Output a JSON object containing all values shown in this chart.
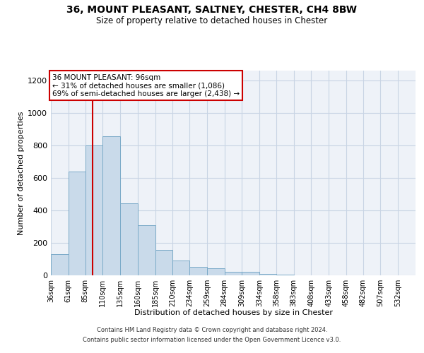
{
  "title_line1": "36, MOUNT PLEASANT, SALTNEY, CHESTER, CH4 8BW",
  "title_line2": "Size of property relative to detached houses in Chester",
  "xlabel": "Distribution of detached houses by size in Chester",
  "ylabel": "Number of detached properties",
  "bar_color": "#c9daea",
  "bar_edge_color": "#7aaac8",
  "grid_color": "#c8d4e4",
  "background_color": "#eef2f8",
  "bin_labels": [
    "36sqm",
    "61sqm",
    "85sqm",
    "110sqm",
    "135sqm",
    "160sqm",
    "185sqm",
    "210sqm",
    "234sqm",
    "259sqm",
    "284sqm",
    "309sqm",
    "334sqm",
    "358sqm",
    "383sqm",
    "408sqm",
    "433sqm",
    "458sqm",
    "482sqm",
    "507sqm",
    "532sqm"
  ],
  "bar_heights": [
    130,
    640,
    800,
    855,
    445,
    310,
    155,
    90,
    52,
    42,
    20,
    20,
    8,
    3,
    0,
    0,
    0,
    0,
    0,
    0,
    0
  ],
  "ylim": [
    0,
    1260
  ],
  "yticks": [
    0,
    200,
    400,
    600,
    800,
    1000,
    1200
  ],
  "label_values": [
    36,
    61,
    85,
    110,
    135,
    160,
    185,
    210,
    234,
    259,
    284,
    309,
    334,
    358,
    383,
    408,
    433,
    458,
    482,
    507,
    532
  ],
  "xlim_left": 36,
  "xlim_right": 557,
  "vline_x": 96,
  "vline_color": "#cc0000",
  "annotation_title": "36 MOUNT PLEASANT: 96sqm",
  "annotation_line1": "← 31% of detached houses are smaller (1,086)",
  "annotation_line2": "69% of semi-detached houses are larger (2,438) →",
  "annotation_box_edge": "#cc0000",
  "footnote1": "Contains HM Land Registry data © Crown copyright and database right 2024.",
  "footnote2": "Contains public sector information licensed under the Open Government Licence v3.0."
}
